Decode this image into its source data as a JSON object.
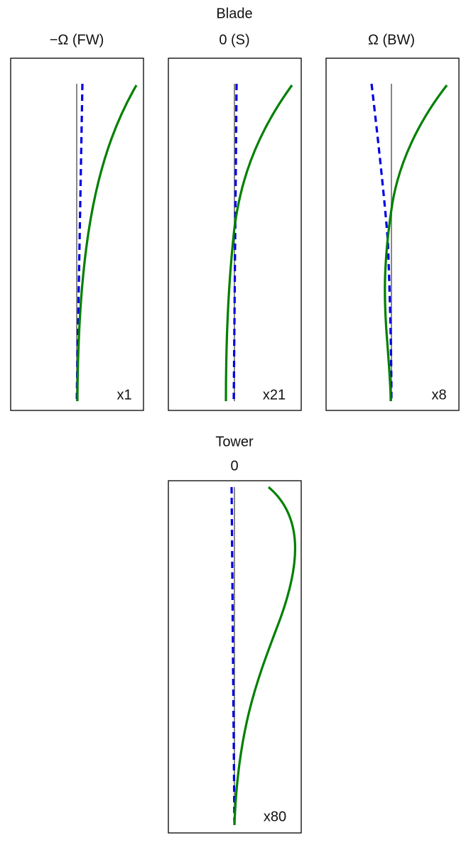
{
  "blade": {
    "title": "Blade",
    "panels": [
      {
        "title": "−Ω (FW)",
        "scale": "x1"
      },
      {
        "title": "0 (S)",
        "scale": "x21"
      },
      {
        "title": "Ω (BW)",
        "scale": "x8"
      }
    ]
  },
  "tower": {
    "title": "Tower",
    "panels": [
      {
        "title": "0",
        "scale": "x80"
      }
    ]
  }
}
